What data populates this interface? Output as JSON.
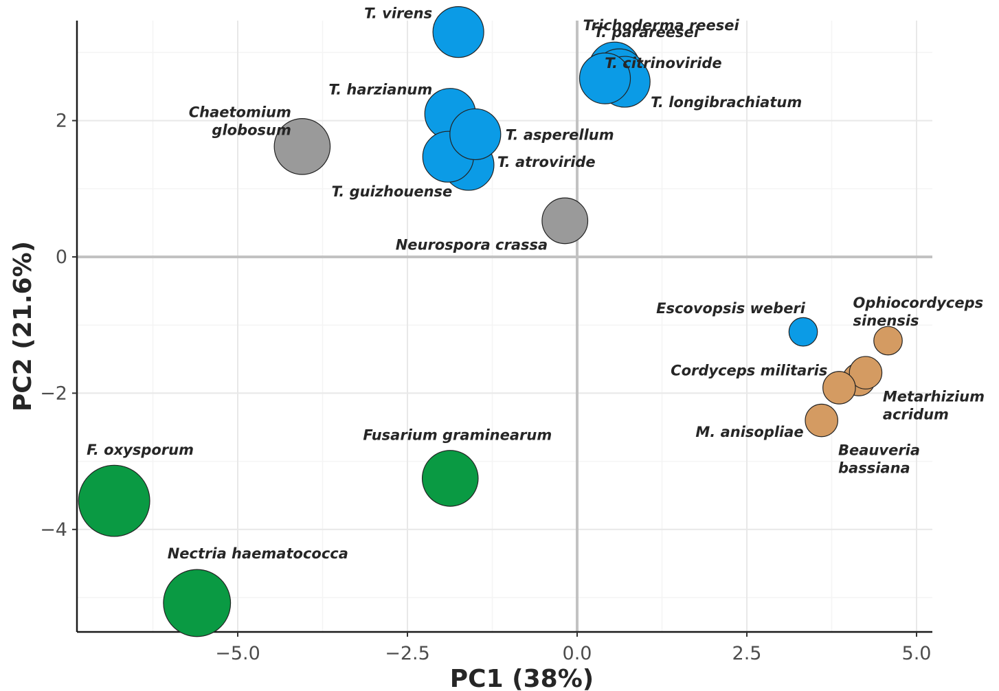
{
  "chart_data": {
    "type": "scatter",
    "xlabel": "PC1 (38%)",
    "ylabel": "PC2 (21.6%)",
    "xlim": [
      -7.3,
      5.2
    ],
    "ylim": [
      -5.5,
      3.5
    ],
    "xticks": [
      {
        "v": -5.0,
        "label": "−5.0"
      },
      {
        "v": -2.5,
        "label": "−2.5"
      },
      {
        "v": 0.0,
        "label": "0.0"
      },
      {
        "v": 2.5,
        "label": "2.5"
      },
      {
        "v": 5.0,
        "label": "5.0"
      }
    ],
    "yticks": [
      {
        "v": -4,
        "label": "−4"
      },
      {
        "v": -2,
        "label": "−2"
      },
      {
        "v": 0,
        "label": "0"
      },
      {
        "v": 2,
        "label": "2"
      }
    ],
    "grid": true,
    "zero_lines": true,
    "colors": {
      "blue": "#0b9be6",
      "gray": "#9a9a9a",
      "green": "#0a9a43",
      "tan": "#d49b62"
    },
    "points": [
      {
        "label": [
          "T. virens"
        ],
        "x": -1.75,
        "y": 3.3,
        "size": 5,
        "color": "blue"
      },
      {
        "label": [
          "T. parareesei"
        ],
        "x": 0.55,
        "y": 2.78,
        "size": 5,
        "color": "blue"
      },
      {
        "label": [
          "T. citrinoviride"
        ],
        "x": 0.62,
        "y": 2.68,
        "size": 5,
        "color": "blue"
      },
      {
        "label": [
          "T. longibrachiatum"
        ],
        "x": 0.7,
        "y": 2.57,
        "size": 5,
        "color": "blue"
      },
      {
        "label": [
          "Trichoderma reesei"
        ],
        "x": 0.41,
        "y": 2.62,
        "size": 5,
        "color": "blue"
      },
      {
        "label": [
          "T. harzianum"
        ],
        "x": -1.87,
        "y": 2.1,
        "size": 5,
        "color": "blue"
      },
      {
        "label": [
          "T. atroviride"
        ],
        "x": -1.6,
        "y": 1.35,
        "size": 5,
        "color": "blue"
      },
      {
        "label": [
          "T. guizhouense"
        ],
        "x": -1.9,
        "y": 1.47,
        "size": 5,
        "color": "blue"
      },
      {
        "label": [
          "T. asperellum"
        ],
        "x": -1.5,
        "y": 1.8,
        "size": 5,
        "color": "blue"
      },
      {
        "label": [
          "Chaetomium",
          "globosum"
        ],
        "x": -4.05,
        "y": 1.62,
        "size": 5.5,
        "color": "gray"
      },
      {
        "label": [
          "Neurospora crassa"
        ],
        "x": -0.18,
        "y": 0.53,
        "size": 4.5,
        "color": "gray"
      },
      {
        "label": [
          "Escovopsis weberi"
        ],
        "x": 3.33,
        "y": -1.1,
        "size": 2.8,
        "color": "blue"
      },
      {
        "label": [
          "Ophiocordyceps",
          "sinensis"
        ],
        "x": 4.58,
        "y": -1.23,
        "size": 2.8,
        "color": "tan"
      },
      {
        "label": [
          "Beauveria",
          "bassiana"
        ],
        "x": 4.15,
        "y": -1.8,
        "size": 3.2,
        "color": "tan"
      },
      {
        "label": [
          "Metarhizium",
          "acridum"
        ],
        "x": 4.25,
        "y": -1.7,
        "size": 3.2,
        "color": "tan"
      },
      {
        "label": [
          "Cordyceps militaris"
        ],
        "x": 3.86,
        "y": -1.92,
        "size": 3.2,
        "color": "tan"
      },
      {
        "label": [
          "M. anisopliae"
        ],
        "x": 3.6,
        "y": -2.4,
        "size": 3.2,
        "color": "tan"
      },
      {
        "label": [
          "Fusarium graminearum"
        ],
        "x": -1.87,
        "y": -3.25,
        "size": 5.5,
        "color": "green"
      },
      {
        "label": [
          "F. oxysporum"
        ],
        "x": -6.82,
        "y": -3.58,
        "size": 7,
        "color": "green"
      },
      {
        "label": [
          "Nectria haematococca"
        ],
        "x": -5.6,
        "y": -5.08,
        "size": 6.6,
        "color": "green"
      }
    ]
  }
}
